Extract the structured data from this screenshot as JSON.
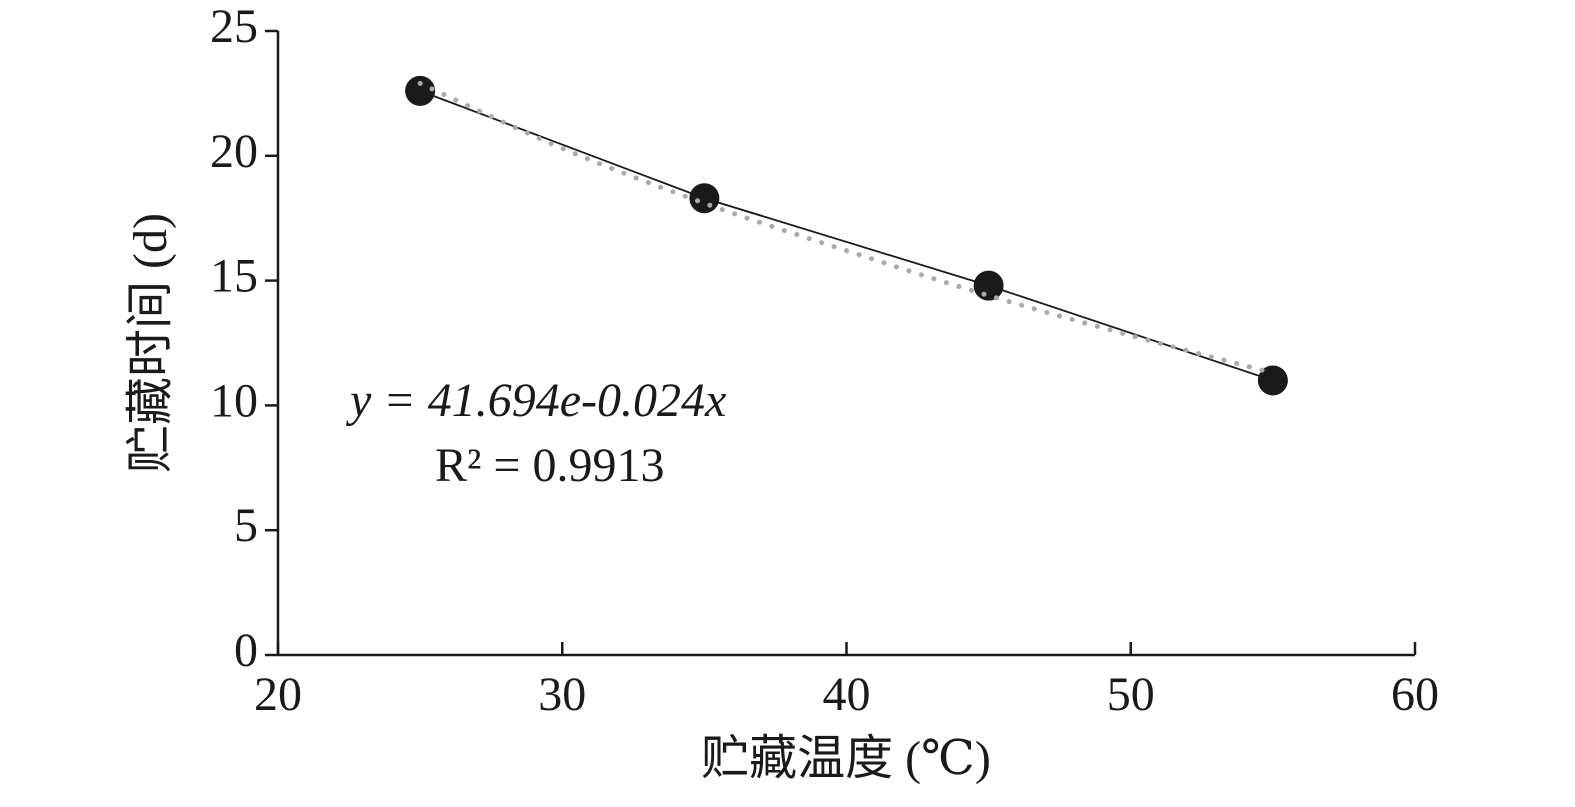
{
  "chart_data": {
    "type": "scatter",
    "x_label": "贮藏温度 (℃)",
    "y_label": "贮藏时间 (d)",
    "annotations": [
      "y = 41.694e-0.024x",
      "R² = 0.9913"
    ],
    "xlim": [
      20,
      60
    ],
    "xticks": [
      20,
      30,
      40,
      50,
      60
    ],
    "ylim": [
      0,
      25
    ],
    "yticks": [
      0,
      5,
      10,
      15,
      20,
      25
    ],
    "grid": false,
    "series": [
      {
        "x": [
          25,
          35,
          45,
          55
        ],
        "values": [
          22.6,
          18.3,
          14.8,
          11.0
        ],
        "color": "#1a1a1a",
        "connect": true
      },
      {
        "x": [
          25,
          30,
          35,
          40,
          45,
          50,
          55
        ],
        "values": [
          22.9,
          20.3,
          18.1,
          16.2,
          14.4,
          12.8,
          11.3
        ],
        "color": "#aaaaaa",
        "dotted": true
      }
    ]
  }
}
